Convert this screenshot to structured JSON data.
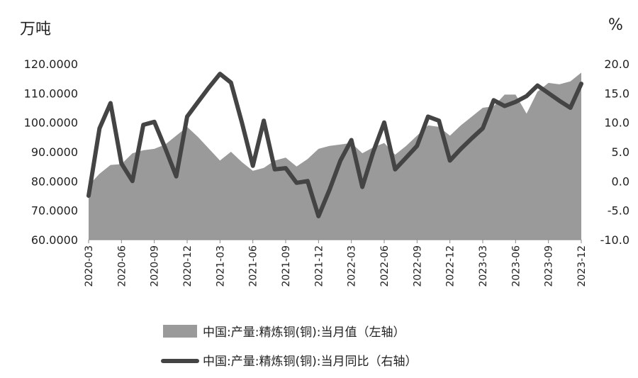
{
  "chart_data": {
    "type": "area+line",
    "left_unit": "万吨",
    "right_unit": "%",
    "left_ylim": [
      60,
      120
    ],
    "left_ticks": [
      "60.0000",
      "70.0000",
      "80.0000",
      "90.0000",
      "100.0000",
      "110.0000",
      "120.0000"
    ],
    "right_ylim": [
      -10,
      20
    ],
    "right_ticks": [
      "-10.0",
      "-5.0",
      "0.0",
      "5.0",
      "10.0",
      "15.0",
      "20.0"
    ],
    "x_tick_labels": [
      "2020-03",
      "2020-06",
      "2020-09",
      "2020-12",
      "2021-03",
      "2021-06",
      "2021-09",
      "2021-12",
      "2022-03",
      "2022-06",
      "2022-09",
      "2022-12",
      "2023-03",
      "2023-06",
      "2023-09",
      "2023-12"
    ],
    "x": [
      "2020-03",
      "2020-04",
      "2020-05",
      "2020-06",
      "2020-07",
      "2020-08",
      "2020-09",
      "2020-10",
      "2020-11",
      "2020-12",
      "2021-01",
      "2021-02",
      "2021-03",
      "2021-04",
      "2021-05",
      "2021-06",
      "2021-07",
      "2021-08",
      "2021-09",
      "2021-10",
      "2021-11",
      "2021-12",
      "2022-01",
      "2022-02",
      "2022-03",
      "2022-04",
      "2022-05",
      "2022-06",
      "2022-07",
      "2022-08",
      "2022-09",
      "2022-10",
      "2022-11",
      "2022-12",
      "2023-01",
      "2023-02",
      "2023-03",
      "2023-04",
      "2023-05",
      "2023-06",
      "2023-07",
      "2023-08",
      "2023-09",
      "2023-10",
      "2023-11",
      "2023-12"
    ],
    "series": [
      {
        "name": "中国:产量:精炼铜(铜):当月值（左轴）",
        "type": "area",
        "axis": "left",
        "color": "#9a9a9a",
        "values": [
          78.5,
          82.5,
          85.5,
          85.8,
          89.5,
          90.5,
          91.0,
          92.5,
          95.5,
          98.5,
          95.0,
          91.0,
          87.0,
          90.0,
          86.5,
          83.5,
          84.5,
          87.0,
          88.0,
          85.0,
          87.5,
          91.0,
          92.0,
          92.5,
          93.0,
          89.5,
          91.5,
          93.0,
          89.0,
          92.0,
          95.5,
          99.0,
          98.5,
          95.5,
          99.0,
          102.0,
          105.0,
          105.5,
          109.5,
          109.5,
          103.0,
          110.5,
          113.5,
          113.0,
          114.0,
          117.0
        ]
      },
      {
        "name": "中国:产量:精炼铜(铜):当月同比（右轴）",
        "type": "line",
        "axis": "right",
        "color": "#444444",
        "values": [
          -2.5,
          9.0,
          13.3,
          3.0,
          0.0,
          9.6,
          10.1,
          5.6,
          0.8,
          11.0,
          13.5,
          16.0,
          18.3,
          16.8,
          10.0,
          2.6,
          10.3,
          2.0,
          2.2,
          -0.3,
          0.0,
          -6.0,
          -1.5,
          3.5,
          7.0,
          -1.0,
          5.0,
          10.0,
          2.0,
          4.0,
          6.0,
          11.0,
          10.3,
          3.5,
          5.5,
          7.3,
          9.0,
          13.8,
          12.8,
          13.5,
          14.5,
          16.3,
          15.0,
          13.7,
          12.5,
          16.6
        ]
      }
    ],
    "grid": false,
    "legend_position": "bottom"
  }
}
